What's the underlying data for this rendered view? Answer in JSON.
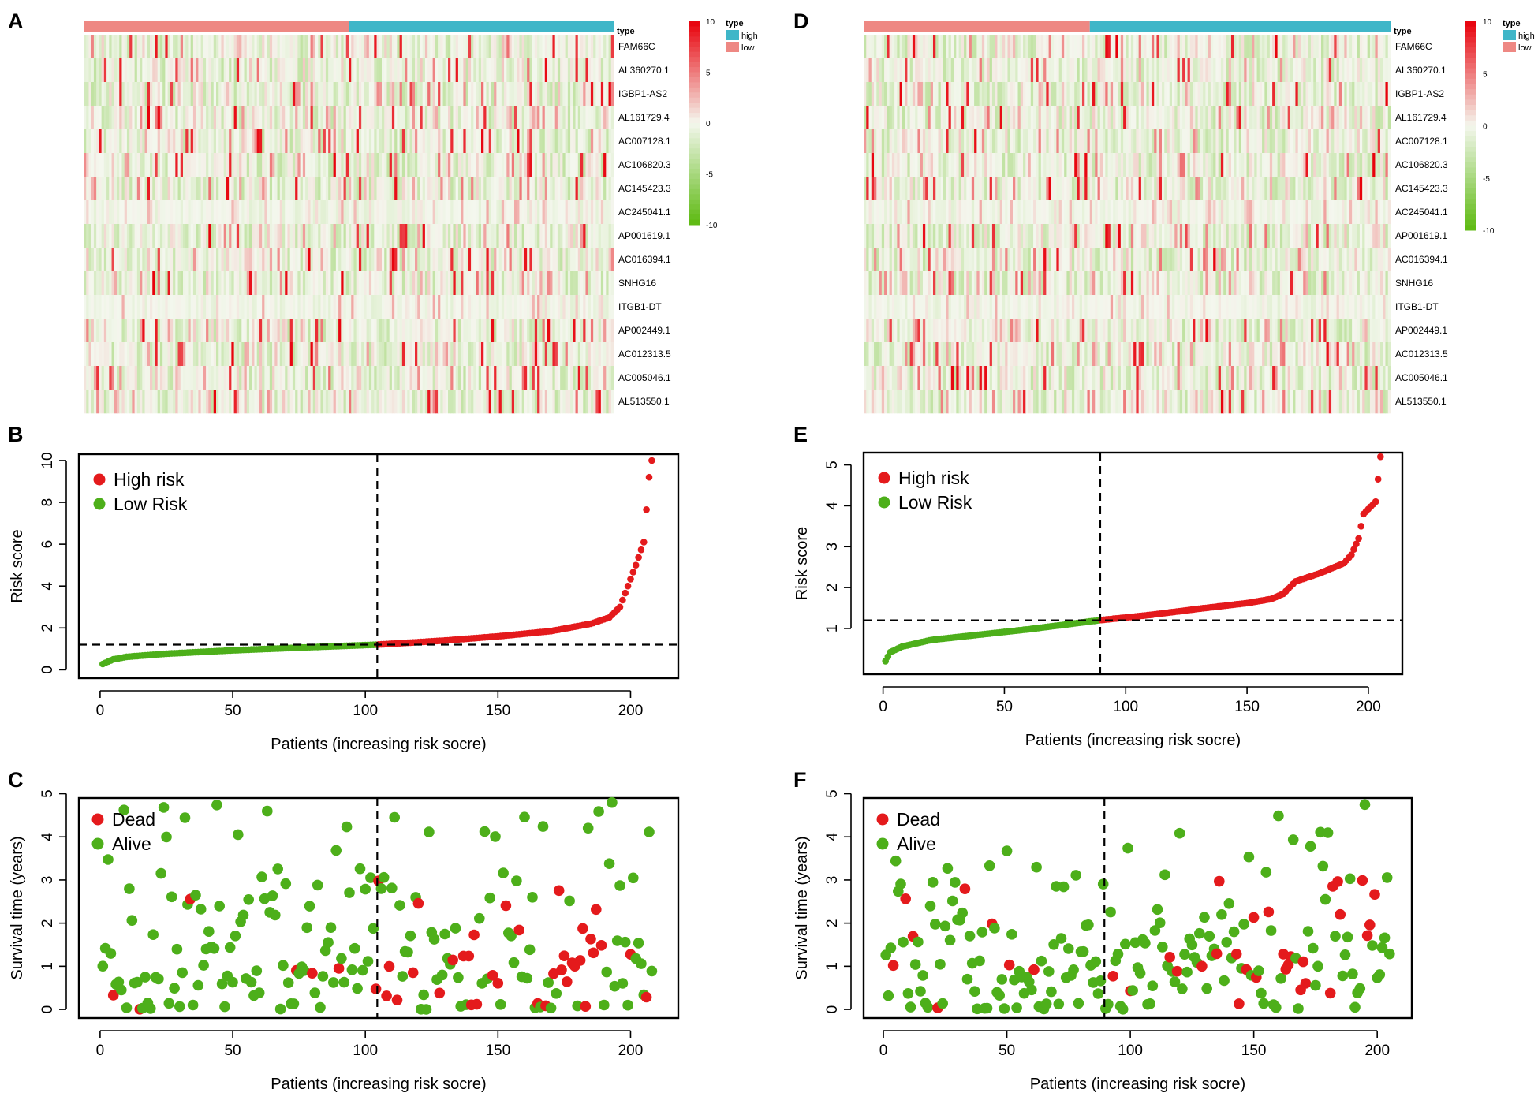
{
  "colors": {
    "high": "#e41a1c",
    "low": "#4daf1a",
    "type_high": "#3fb6c8",
    "type_low": "#ee8883",
    "heat_pos": "#e8000b",
    "heat_neg": "#5cb90f",
    "heat_mid": "#f4f7ee"
  },
  "panel_letters": [
    "A",
    "B",
    "C",
    "D",
    "E",
    "F"
  ],
  "heatmap_common": {
    "genes": [
      "FAM66C",
      "AL360270.1",
      "IGBP1-AS2",
      "AL161729.4",
      "AC007128.1",
      "AC106820.3",
      "AC145423.3",
      "AC245041.1",
      "AP001619.1",
      "AC016394.1",
      "SNHG16",
      "ITGB1-DT",
      "AP002449.1",
      "AC012313.5",
      "AC005046.1",
      "AL513550.1"
    ],
    "type_label": "type",
    "legend_title": "type",
    "legend_high": "high",
    "legend_low": "low",
    "colorbar_ticks": [
      "10",
      "5",
      "0",
      "-5",
      "-10"
    ]
  },
  "chart_data": [
    {
      "panel": "A",
      "type": "heatmap",
      "rows": 16,
      "columns": 208,
      "low_count": 104,
      "high_count": 104,
      "color_range": [
        -10,
        10
      ]
    },
    {
      "panel": "B",
      "type": "scatter",
      "xlabel": "Patients (increasing risk socre)",
      "ylabel": "Risk score",
      "xlim": [
        -8,
        218
      ],
      "ylim": [
        -0.4,
        10.3
      ],
      "xticks": [
        0,
        50,
        100,
        150,
        200
      ],
      "yticks": [
        0,
        2,
        4,
        6,
        8,
        10
      ],
      "n": 208,
      "cutoff_index": 104,
      "cutoff_value": 1.2,
      "curve": [
        [
          1,
          0.28
        ],
        [
          5,
          0.5
        ],
        [
          10,
          0.62
        ],
        [
          25,
          0.77
        ],
        [
          50,
          0.93
        ],
        [
          75,
          1.06
        ],
        [
          104,
          1.2
        ],
        [
          130,
          1.4
        ],
        [
          150,
          1.6
        ],
        [
          170,
          1.85
        ],
        [
          185,
          2.2
        ],
        [
          192,
          2.5
        ],
        [
          196,
          3.0
        ],
        [
          199,
          4.0
        ],
        [
          202,
          5.0
        ],
        [
          205,
          6.1
        ],
        [
          207,
          9.2
        ],
        [
          208,
          10.0
        ]
      ],
      "legend": [
        {
          "label": "High risk",
          "color": "#e41a1c"
        },
        {
          "label": "Low Risk",
          "color": "#4daf1a"
        }
      ]
    },
    {
      "panel": "C",
      "type": "scatter",
      "xlabel": "Patients (increasing risk socre)",
      "ylabel": "Survival time (years)",
      "xlim": [
        -8,
        218
      ],
      "ylim": [
        -0.2,
        4.9
      ],
      "xticks": [
        0,
        50,
        100,
        150,
        200
      ],
      "yticks": [
        0,
        1,
        2,
        3,
        4,
        5
      ],
      "n": 208,
      "cutoff_index": 104,
      "dead_rate_low": 0.08,
      "dead_rate_high": 0.3,
      "legend": [
        {
          "label": "Dead",
          "color": "#e41a1c"
        },
        {
          "label": "Alive",
          "color": "#4daf1a"
        }
      ]
    },
    {
      "panel": "D",
      "type": "heatmap",
      "rows": 16,
      "columns": 205,
      "low_count": 88,
      "high_count": 117,
      "color_range": [
        -10,
        10
      ]
    },
    {
      "panel": "E",
      "type": "scatter",
      "xlabel": "Patients (increasing risk socre)",
      "ylabel": "Risk score",
      "xlim": [
        -8,
        214
      ],
      "ylim": [
        -0.12,
        5.3
      ],
      "xticks": [
        0,
        50,
        100,
        150,
        200
      ],
      "yticks": [
        1,
        2,
        3,
        4,
        5
      ],
      "n": 205,
      "cutoff_index": 89,
      "cutoff_value": 1.2,
      "curve": [
        [
          1,
          0.2
        ],
        [
          3,
          0.42
        ],
        [
          8,
          0.56
        ],
        [
          20,
          0.72
        ],
        [
          40,
          0.85
        ],
        [
          60,
          0.98
        ],
        [
          89,
          1.2
        ],
        [
          110,
          1.33
        ],
        [
          130,
          1.48
        ],
        [
          150,
          1.62
        ],
        [
          160,
          1.72
        ],
        [
          165,
          1.85
        ],
        [
          170,
          2.15
        ],
        [
          180,
          2.35
        ],
        [
          190,
          2.6
        ],
        [
          193,
          2.8
        ],
        [
          196,
          3.2
        ],
        [
          198,
          3.8
        ],
        [
          203,
          4.1
        ],
        [
          205,
          5.2
        ]
      ],
      "legend": [
        {
          "label": "High risk",
          "color": "#e41a1c"
        },
        {
          "label": "Low Risk",
          "color": "#4daf1a"
        }
      ]
    },
    {
      "panel": "F",
      "type": "scatter",
      "xlabel": "Patients (increasing risk socre)",
      "ylabel": "Survival time (years)",
      "xlim": [
        -8,
        214
      ],
      "ylim": [
        -0.2,
        4.9
      ],
      "xticks": [
        0,
        50,
        100,
        150,
        200
      ],
      "yticks": [
        0,
        1,
        2,
        3,
        4,
        5
      ],
      "n": 205,
      "cutoff_index": 89,
      "dead_rate_low": 0.08,
      "dead_rate_high": 0.22,
      "legend": [
        {
          "label": "Dead",
          "color": "#e41a1c"
        },
        {
          "label": "Alive",
          "color": "#4daf1a"
        }
      ]
    }
  ]
}
